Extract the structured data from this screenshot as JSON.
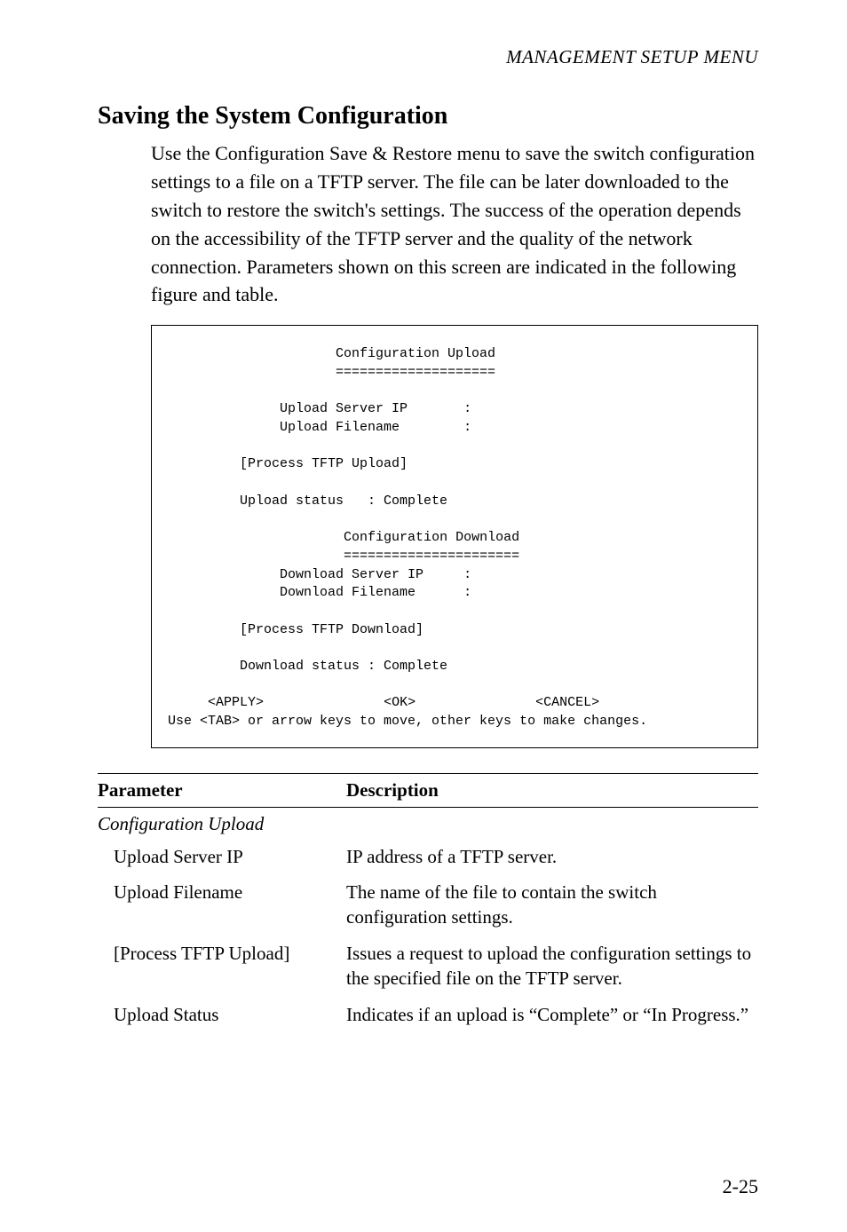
{
  "running_head": "MANAGEMENT SETUP MENU",
  "section_title": "Saving the System Configuration",
  "body_paragraph": "Use the Configuration Save & Restore menu to save the switch configuration settings to a file on a TFTP server. The file can be later downloaded to the switch to restore the switch's settings. The success of the operation depends on the accessibility of the TFTP server and the quality of the network connection. Parameters shown on this screen are indicated in the following figure and table.",
  "terminal": {
    "upload_title": "Configuration Upload",
    "upload_underline": "====================",
    "upload_server_label": "Upload Server IP       :",
    "upload_filename_label": "Upload Filename        :",
    "process_upload": "[Process TFTP Upload]",
    "upload_status": "Upload status   : Complete",
    "download_title": "Configuration Download",
    "download_underline": "======================",
    "download_server_label": "Download Server IP     :",
    "download_filename_label": "Download Filename      :",
    "process_download": "[Process TFTP Download]",
    "download_status": "Download status : Complete",
    "apply": "<APPLY>",
    "ok": "<OK>",
    "cancel": "<CANCEL>",
    "hint": "Use <TAB> or arrow keys to move, other keys to make changes."
  },
  "table": {
    "col1": "Parameter",
    "col2": "Description",
    "group": "Configuration Upload",
    "rows": [
      {
        "p": "Upload Server IP",
        "d": "IP address of a TFTP server."
      },
      {
        "p": "Upload Filename",
        "d": "The name of the file to contain the switch configuration settings."
      },
      {
        "p": "[Process TFTP Upload]",
        "d": "Issues a request to upload the configuration settings to the specified file on the TFTP server."
      },
      {
        "p": "Upload Status",
        "d": "Indicates if an upload is “Complete” or “In Progress.”"
      }
    ]
  },
  "page_number": "2-25"
}
